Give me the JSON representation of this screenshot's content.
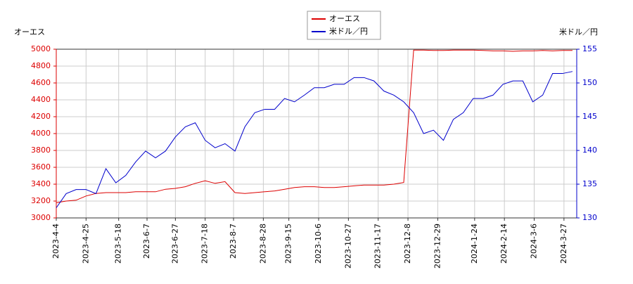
{
  "chart_data": {
    "type": "line",
    "ylabel": "オーエス",
    "y2label": "米ドル／円",
    "legend": "top",
    "grid": true,
    "x": [
      "2023-4-4",
      "2023-4-11",
      "2023-4-18",
      "2023-4-25",
      "2023-5-2",
      "2023-5-9",
      "2023-5-16",
      "2023-5-23",
      "2023-5-30",
      "2023-6-6",
      "2023-6-13",
      "2023-6-20",
      "2023-6-27",
      "2023-7-4",
      "2023-7-11",
      "2023-7-18",
      "2023-7-25",
      "2023-8-1",
      "2023-8-8",
      "2023-8-15",
      "2023-8-22",
      "2023-8-29",
      "2023-9-5",
      "2023-9-12",
      "2023-9-19",
      "2023-9-26",
      "2023-10-3",
      "2023-10-10",
      "2023-10-17",
      "2023-10-24",
      "2023-10-31",
      "2023-11-7",
      "2023-11-14",
      "2023-11-21",
      "2023-11-28",
      "2023-12-5",
      "2023-12-12",
      "2023-12-19",
      "2023-12-26",
      "2024-1-2",
      "2024-1-9",
      "2024-1-16",
      "2024-1-23",
      "2024-1-30",
      "2024-2-6",
      "2024-2-13",
      "2024-2-20",
      "2024-2-27",
      "2024-3-5",
      "2024-3-12",
      "2024-3-19",
      "2024-3-26",
      "2024-4-2"
    ],
    "series": [
      {
        "name": "オーエス",
        "color": "#dd0000",
        "values": [
          3180,
          3200,
          3210,
          3260,
          3290,
          3300,
          3300,
          3300,
          3310,
          3310,
          3310,
          3340,
          3350,
          3370,
          3410,
          3440,
          3410,
          3430,
          3300,
          3290,
          3300,
          3310,
          3320,
          3340,
          3360,
          3370,
          3370,
          3360,
          3360,
          3370,
          3380,
          3390,
          3390,
          3390,
          3400,
          3420,
          4990,
          4990,
          4985,
          4985,
          4990,
          4990,
          4990,
          4985,
          4980,
          4980,
          4975,
          4980,
          4980,
          4985,
          4980,
          4985,
          4985
        ]
      },
      {
        "name": "米ドル／円",
        "color": "#0000cc",
        "axis": "y2",
        "values": [
          131.5,
          133.6,
          134.2,
          134.2,
          133.6,
          137.3,
          135.2,
          136.3,
          138.3,
          139.9,
          138.9,
          139.9,
          142.0,
          143.5,
          144.1,
          141.5,
          140.4,
          141.0,
          139.9,
          143.5,
          145.6,
          146.1,
          146.1,
          147.7,
          147.2,
          148.2,
          149.3,
          149.3,
          149.8,
          149.8,
          150.8,
          150.8,
          150.3,
          148.8,
          148.2,
          147.2,
          145.6,
          142.5,
          143.0,
          141.5,
          144.6,
          145.6,
          147.7,
          147.7,
          148.2,
          149.8,
          150.3,
          150.3,
          147.2,
          148.2,
          151.4,
          151.4,
          151.7
        ]
      }
    ],
    "xlim": [
      "2023-4-4",
      "2024-4-5"
    ],
    "xticks": [
      "2023-4-4",
      "2023-4-25",
      "2023-5-18",
      "2023-6-7",
      "2023-6-27",
      "2023-7-18",
      "2023-8-7",
      "2023-8-28",
      "2023-9-15",
      "2023-10-6",
      "2023-10-27",
      "2023-11-17",
      "2023-12-8",
      "2023-12-29",
      "2024-1-24",
      "2024-2-14",
      "2024-3-6",
      "2024-3-27"
    ],
    "ylim": [
      3000,
      5000
    ],
    "yticks": [
      3000,
      3200,
      3400,
      3600,
      3800,
      4000,
      4200,
      4400,
      4600,
      4800,
      5000
    ],
    "y2lim": [
      130,
      155
    ],
    "y2ticks": [
      130,
      135,
      140,
      145,
      150,
      155
    ]
  }
}
